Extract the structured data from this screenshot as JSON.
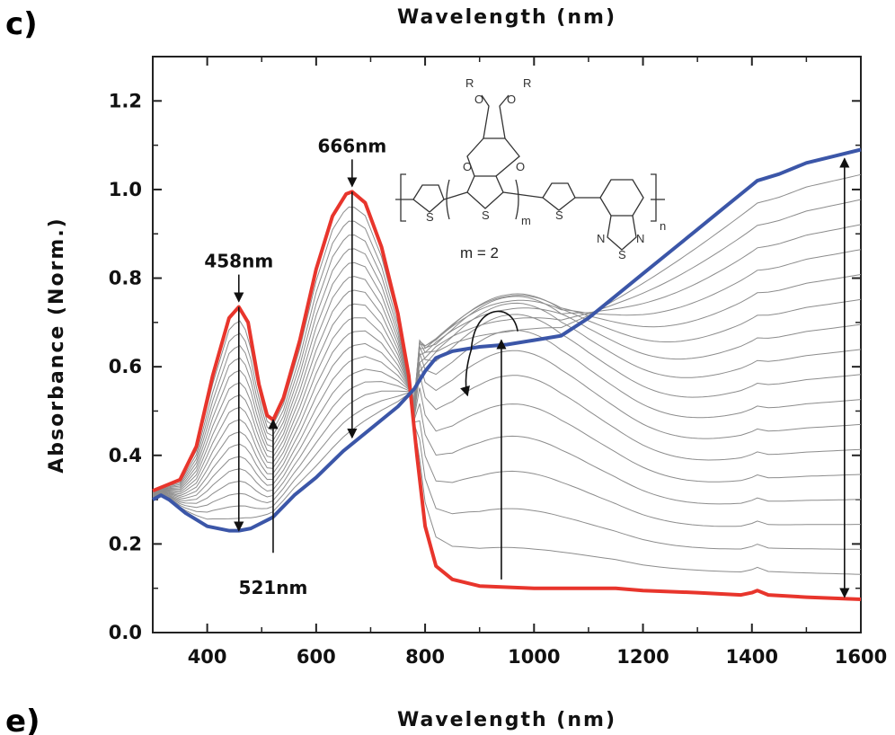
{
  "panel_labels": {
    "current": "c)",
    "next": "e)"
  },
  "chart_data": {
    "type": "line",
    "title": "",
    "top_axis_label": "Wavelength (nm)",
    "xlabel": "Wavelength (nm)",
    "ylabel": "Absorbance (Norm.)",
    "xlim": [
      300,
      1600
    ],
    "ylim": [
      0.0,
      1.3
    ],
    "xticks": [
      400,
      600,
      800,
      1000,
      1200,
      1400,
      1600
    ],
    "yticks": [
      0.0,
      0.2,
      0.4,
      0.6,
      0.8,
      1.0,
      1.2
    ],
    "grid": false,
    "series": [
      {
        "role": "neutral",
        "color": "#e8352c",
        "points": [
          [
            300,
            0.32
          ],
          [
            330,
            0.335
          ],
          [
            350,
            0.345
          ],
          [
            380,
            0.42
          ],
          [
            410,
            0.58
          ],
          [
            440,
            0.71
          ],
          [
            458,
            0.735
          ],
          [
            475,
            0.7
          ],
          [
            495,
            0.56
          ],
          [
            510,
            0.49
          ],
          [
            521,
            0.48
          ],
          [
            540,
            0.53
          ],
          [
            570,
            0.66
          ],
          [
            600,
            0.82
          ],
          [
            630,
            0.94
          ],
          [
            655,
            0.99
          ],
          [
            666,
            0.995
          ],
          [
            690,
            0.97
          ],
          [
            720,
            0.87
          ],
          [
            750,
            0.72
          ],
          [
            770,
            0.58
          ],
          [
            785,
            0.4
          ],
          [
            800,
            0.24
          ],
          [
            820,
            0.15
          ],
          [
            850,
            0.12
          ],
          [
            900,
            0.105
          ],
          [
            1000,
            0.1
          ],
          [
            1100,
            0.1
          ],
          [
            1150,
            0.1
          ],
          [
            1200,
            0.095
          ],
          [
            1300,
            0.09
          ],
          [
            1380,
            0.085
          ],
          [
            1400,
            0.09
          ],
          [
            1410,
            0.095
          ],
          [
            1430,
            0.085
          ],
          [
            1500,
            0.08
          ],
          [
            1600,
            0.075
          ]
        ]
      },
      {
        "role": "fully-oxidized",
        "color": "#3b56a8",
        "points": [
          [
            300,
            0.3
          ],
          [
            315,
            0.31
          ],
          [
            330,
            0.3
          ],
          [
            360,
            0.27
          ],
          [
            400,
            0.24
          ],
          [
            440,
            0.23
          ],
          [
            458,
            0.23
          ],
          [
            480,
            0.235
          ],
          [
            520,
            0.26
          ],
          [
            560,
            0.31
          ],
          [
            600,
            0.35
          ],
          [
            650,
            0.41
          ],
          [
            700,
            0.46
          ],
          [
            750,
            0.51
          ],
          [
            780,
            0.55
          ],
          [
            800,
            0.59
          ],
          [
            820,
            0.62
          ],
          [
            850,
            0.635
          ],
          [
            900,
            0.645
          ],
          [
            950,
            0.65
          ],
          [
            1000,
            0.66
          ],
          [
            1050,
            0.67
          ],
          [
            1100,
            0.71
          ],
          [
            1150,
            0.76
          ],
          [
            1200,
            0.81
          ],
          [
            1250,
            0.86
          ],
          [
            1300,
            0.91
          ],
          [
            1350,
            0.96
          ],
          [
            1400,
            1.01
          ],
          [
            1410,
            1.02
          ],
          [
            1450,
            1.035
          ],
          [
            1500,
            1.06
          ],
          [
            1550,
            1.075
          ],
          [
            1600,
            1.09
          ]
        ]
      }
    ],
    "intermediate_curve_count": 17,
    "intermediate_color": "#8c8c8c",
    "annotations": [
      {
        "label": "458nm",
        "x": 458,
        "arrow": "down",
        "value_from": 0.735,
        "value_to": 0.23
      },
      {
        "label": "666nm",
        "x": 666,
        "arrow": "down",
        "value_from": 0.995,
        "value_to": 0.44
      },
      {
        "label": "521nm",
        "x": 521,
        "arrow": "up",
        "value_from": 0.18,
        "value_to": 0.48
      },
      {
        "label": "",
        "x": 940,
        "arrow": "up",
        "value_from": 0.12,
        "value_to": 0.66
      },
      {
        "label": "",
        "x": 1570,
        "arrow": "both",
        "value_from": 0.08,
        "value_to": 1.07
      }
    ],
    "structure_labels": {
      "substituent_1": "R",
      "substituent_2": "R",
      "oxygen": "O",
      "sulfur": "S",
      "nitrogen": "N",
      "repeat_m": "m",
      "repeat_n": "n",
      "m_value": "m = 2"
    }
  }
}
